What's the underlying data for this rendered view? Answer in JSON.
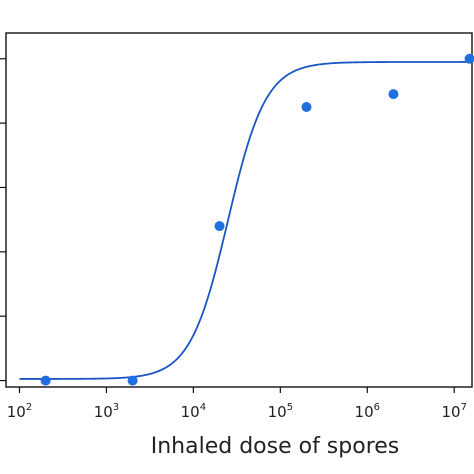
{
  "chart_data": {
    "type": "scatter",
    "title": "",
    "xlabel": "Inhaled dose of spores",
    "ylabel": "",
    "x_scale": "log",
    "xlim": [
      70,
      16000000
    ],
    "ylim": [
      -0.02,
      1.08
    ],
    "grid": false,
    "legend": "none",
    "x_ticks": [
      {
        "base": "10",
        "exp": "2",
        "value": 100
      },
      {
        "base": "10",
        "exp": "3",
        "value": 1000
      },
      {
        "base": "10",
        "exp": "4",
        "value": 10000
      },
      {
        "base": "10",
        "exp": "5",
        "value": 100000
      },
      {
        "base": "10",
        "exp": "6",
        "value": 1000000
      },
      {
        "base": "10",
        "exp": "7",
        "value": 10000000
      }
    ],
    "series": [
      {
        "kind": "points",
        "color": "#1f6fe0",
        "x": [
          200,
          2000,
          20000,
          200000,
          2000000,
          15000000
        ],
        "y": [
          0.0,
          0.0,
          0.48,
          0.85,
          0.89,
          1.0
        ]
      },
      {
        "kind": "fit-curve",
        "color": "#1a56c4",
        "model": "log-logistic",
        "midpoint": 25000,
        "slope": 2.0,
        "lower": 0.005,
        "upper": 0.99,
        "x_range": [
          100,
          16000000
        ]
      }
    ]
  }
}
